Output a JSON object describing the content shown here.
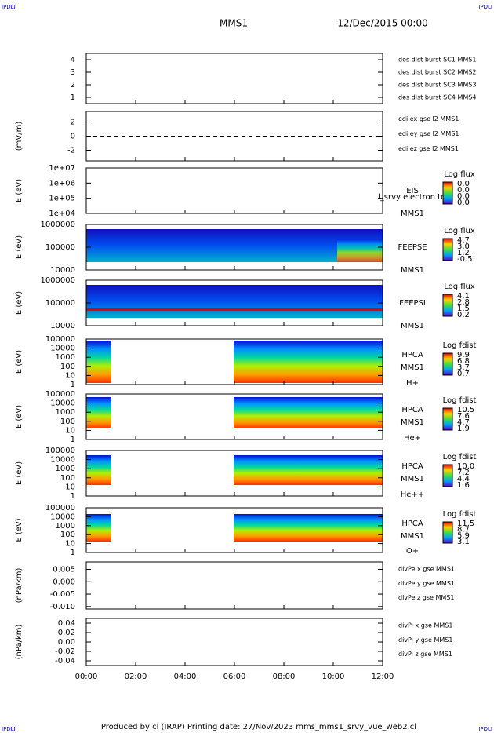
{
  "header": {
    "left_tag": "IPDLI",
    "right_tag": "IPDLI",
    "title": "MMS1",
    "date": "12/Dec/2015 00:00"
  },
  "footer": {
    "left_tag": "IPDLI",
    "right_tag": "IPDLI",
    "text": "Produced by cl (IRAP)   Printing date: 27/Nov/2023   mms_mms1_srvy_vue_web2.cl"
  },
  "chart_data": [
    {
      "type": "timeline",
      "ylim": [
        0.5,
        4.5
      ],
      "yticks": [
        1,
        2,
        3,
        4
      ],
      "series": [
        {
          "name": "des dist burst SC1 MMS1",
          "color": "#0000cc"
        },
        {
          "name": "des dist burst SC2 MMS2",
          "color": "#cc00cc"
        },
        {
          "name": "des dist burst SC3 MMS3",
          "color": "#cc0000"
        },
        {
          "name": "des dist burst SC4 MMS4",
          "color": "#00bb00"
        }
      ]
    },
    {
      "type": "line",
      "ylabel": "(mV/m)",
      "ylim": [
        -3.5,
        3.5
      ],
      "yticks": [
        -2,
        0,
        2
      ],
      "series": [
        {
          "name": "edi ex gse l2 MMS1",
          "color": "#cc0000"
        },
        {
          "name": "edi ey gse l2 MMS1",
          "color": "#00bb00"
        },
        {
          "name": "edi ez gse l2 MMS1",
          "color": "#0000cc"
        }
      ]
    },
    {
      "type": "spectrogram",
      "ylabel": "E (eV)",
      "log": true,
      "ylim": [
        10000,
        10000000
      ],
      "yticks": [
        {
          "value": 10000,
          "label": "1e+04"
        },
        {
          "value": 100000,
          "label": "1e+05"
        },
        {
          "value": 1000000,
          "label": "1e+06"
        },
        {
          "value": 10000000,
          "label": "1e+07"
        }
      ],
      "instrument": "EIS",
      "spacecraft": "MMS1",
      "overlay": "l_srvy electron to",
      "colorbar_title": "Log flux",
      "colorbar_ticks": [
        "0.0",
        "0.0",
        "0.0",
        "0.0"
      ]
    },
    {
      "type": "spectrogram",
      "ylabel": "E (eV)",
      "log": true,
      "ylim": [
        10000,
        1000000
      ],
      "yticks": [
        10000,
        100000,
        1000000
      ],
      "instrument": "FEEPSE",
      "spacecraft": "MMS1",
      "colorbar_title": "Log flux",
      "colorbar_ticks": [
        "4.7",
        "3.0",
        "1.2",
        "-0.5"
      ]
    },
    {
      "type": "spectrogram",
      "ylabel": "E (eV)",
      "log": true,
      "ylim": [
        10000,
        1000000
      ],
      "yticks": [
        10000,
        100000,
        1000000
      ],
      "instrument": "FEEPSI",
      "spacecraft": "MMS1",
      "colorbar_title": "Log flux",
      "colorbar_ticks": [
        "4.1",
        "2.8",
        "1.5",
        "0.2"
      ]
    },
    {
      "type": "spectrogram",
      "ylabel": "E (eV)",
      "log": true,
      "ylim": [
        1,
        100000
      ],
      "yticks": [
        1,
        10,
        100,
        1000,
        10000,
        100000
      ],
      "instrument": "HPCA",
      "spacecraft": "MMS1",
      "species": "H+",
      "colorbar_title": "Log fdist",
      "colorbar_ticks": [
        "9.9",
        "6.8",
        "3.7",
        "0.7"
      ]
    },
    {
      "type": "spectrogram",
      "ylabel": "E (eV)",
      "log": true,
      "ylim": [
        1,
        100000
      ],
      "yticks": [
        1,
        10,
        100,
        1000,
        10000,
        100000
      ],
      "instrument": "HPCA",
      "spacecraft": "MMS1",
      "species": "He+",
      "colorbar_title": "Log fdist",
      "colorbar_ticks": [
        "10.5",
        "7.6",
        "4.7",
        "1.9"
      ]
    },
    {
      "type": "spectrogram",
      "ylabel": "E (eV)",
      "log": true,
      "ylim": [
        1,
        100000
      ],
      "yticks": [
        1,
        10,
        100,
        1000,
        10000,
        100000
      ],
      "instrument": "HPCA",
      "spacecraft": "MMS1",
      "species": "He++",
      "colorbar_title": "Log fdist",
      "colorbar_ticks": [
        "10.0",
        "7.2",
        "4.4",
        "1.6"
      ]
    },
    {
      "type": "spectrogram",
      "ylabel": "E (eV)",
      "log": true,
      "ylim": [
        1,
        100000
      ],
      "yticks": [
        1,
        10,
        100,
        1000,
        10000,
        100000
      ],
      "instrument": "HPCA",
      "spacecraft": "MMS1",
      "species": "O+",
      "colorbar_title": "Log fdist",
      "colorbar_ticks": [
        "11.5",
        "8.7",
        "5.9",
        "3.1"
      ]
    },
    {
      "type": "line",
      "ylabel": "(nPa/km)",
      "ylim": [
        -0.011,
        0.008
      ],
      "yticks": [
        {
          "value": -0.01,
          "label": "-0.010"
        },
        -0.005,
        {
          "value": 0,
          "label": "0.000"
        },
        0.005
      ],
      "series": [
        {
          "name": "divPe x gse MMS1",
          "color": "#cc0000"
        },
        {
          "name": "divPe y gse MMS1",
          "color": "#00bb00"
        },
        {
          "name": "divPe z gse MMS1",
          "color": "#0000cc"
        }
      ]
    },
    {
      "type": "line",
      "ylabel": "(nPa/km)",
      "ylim": [
        -0.05,
        0.05
      ],
      "yticks": [
        -0.04,
        -0.02,
        {
          "value": 0,
          "label": "0.00"
        },
        0.02,
        0.04
      ],
      "series": [
        {
          "name": "divPi x gse MMS1",
          "color": "#cc0000"
        },
        {
          "name": "divPi y gse MMS1",
          "color": "#00bb00"
        },
        {
          "name": "divPi z gse MMS1",
          "color": "#0000cc"
        }
      ],
      "xlim": [
        0,
        12
      ],
      "xticks": [
        {
          "value": 0,
          "label": "00:00"
        },
        {
          "value": 2,
          "label": "02:00"
        },
        {
          "value": 4,
          "label": "04:00"
        },
        {
          "value": 6,
          "label": "06:00"
        },
        {
          "value": 8,
          "label": "08:00"
        },
        {
          "value": 10,
          "label": "10:00"
        },
        {
          "value": 12,
          "label": "12:00"
        }
      ]
    }
  ]
}
